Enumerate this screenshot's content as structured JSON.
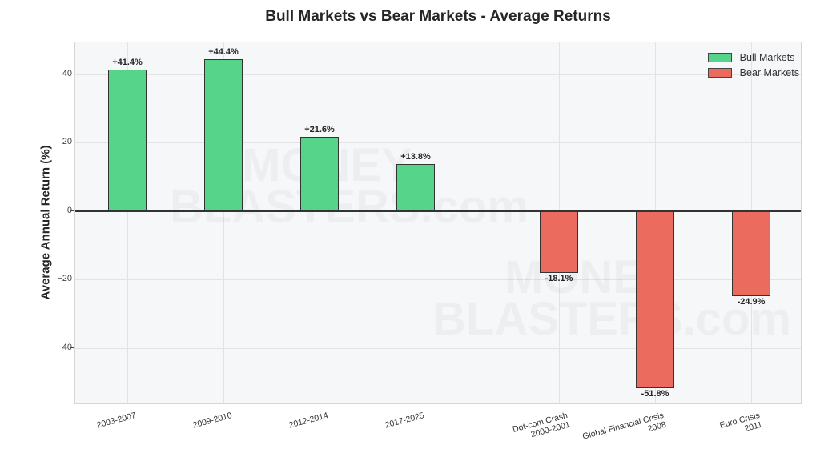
{
  "chart_data": {
    "type": "bar",
    "title": "Bull Markets vs Bear Markets - Average Returns",
    "xlabel": "",
    "ylabel": "Average Annual Return (%)",
    "ylim": [
      -56.7,
      49.3
    ],
    "yticks": [
      40,
      20,
      0,
      -20,
      -40
    ],
    "ytick_labels": [
      "40",
      "20",
      "0",
      "−20",
      "−40"
    ],
    "grid": true,
    "legend_position": "upper right",
    "categories": [
      "2003-2007",
      "2009-2010",
      "2012-2014",
      "2017-2025",
      "Dot-com Crash\n2000-2001",
      "Global Financial Crisis\n2008",
      "Euro Crisis\n2011"
    ],
    "series": [
      {
        "name": "Bull Markets",
        "color": "#55d48a",
        "categories": [
          "2003-2007",
          "2009-2010",
          "2012-2014",
          "2017-2025"
        ],
        "values": [
          41.4,
          44.4,
          21.6,
          13.8
        ],
        "labels": [
          "+41.4%",
          "+44.4%",
          "+21.6%",
          "+13.8%"
        ]
      },
      {
        "name": "Bear Markets",
        "color": "#eb6b5e",
        "categories": [
          "Dot-com Crash\n2000-2001",
          "Global Financial Crisis\n2008",
          "Euro Crisis\n2011"
        ],
        "values": [
          -18.1,
          -51.8,
          -24.9
        ],
        "labels": [
          "-18.1%",
          "-51.8%",
          "-24.9%"
        ]
      }
    ]
  },
  "legend": {
    "items": [
      {
        "label": "Bull Markets",
        "color": "#55d48a"
      },
      {
        "label": "Bear Markets",
        "color": "#eb6b5e"
      }
    ]
  },
  "bars": [
    {
      "category_line1": "2003-2007",
      "category_line2": "",
      "value": 41.4,
      "label": "+41.4%",
      "type": "bull"
    },
    {
      "category_line1": "2009-2010",
      "category_line2": "",
      "value": 44.4,
      "label": "+44.4%",
      "type": "bull"
    },
    {
      "category_line1": "2012-2014",
      "category_line2": "",
      "value": 21.6,
      "label": "+21.6%",
      "type": "bull"
    },
    {
      "category_line1": "2017-2025",
      "category_line2": "",
      "value": 13.8,
      "label": "+13.8%",
      "type": "bull"
    },
    {
      "category_line1": "Dot-com Crash",
      "category_line2": "2000-2001",
      "value": -18.1,
      "label": "-18.1%",
      "type": "bear"
    },
    {
      "category_line1": "Global Financial Crisis",
      "category_line2": "2008",
      "value": -51.8,
      "label": "-51.8%",
      "type": "bear"
    },
    {
      "category_line1": "Euro Crisis",
      "category_line2": "2011",
      "value": -24.9,
      "label": "-24.9%",
      "type": "bear"
    }
  ],
  "watermark": {
    "line1": "MONEY",
    "line2": "BLASTERS.com"
  }
}
